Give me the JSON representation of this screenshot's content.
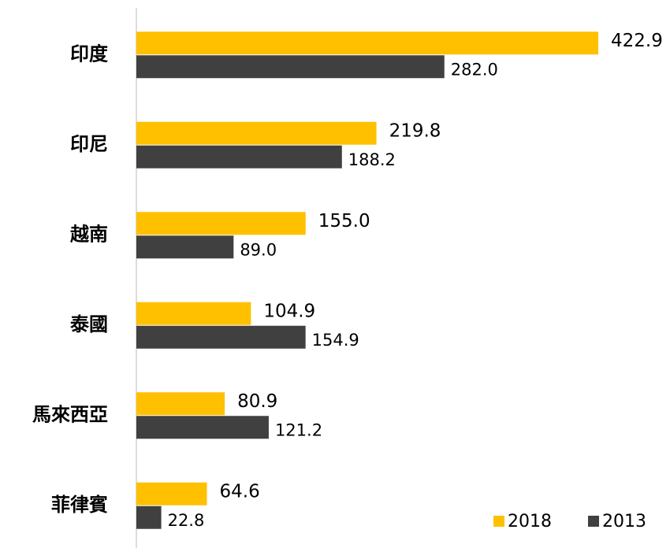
{
  "chart_data": {
    "type": "bar",
    "orientation": "horizontal",
    "categories": [
      "印度",
      "印尼",
      "越南",
      "泰國",
      "馬來西亞",
      "菲律賓"
    ],
    "series": [
      {
        "name": "2018",
        "color": "#FFC000",
        "values": [
          422.9,
          219.8,
          155.0,
          104.9,
          80.9,
          64.6
        ],
        "value_labels": [
          "422.9",
          "219.8",
          "155.0",
          "104.9",
          "80.9",
          "64.6"
        ]
      },
      {
        "name": "2013",
        "color": "#404040",
        "values": [
          282.0,
          188.2,
          89.0,
          154.9,
          121.2,
          22.8
        ],
        "value_labels": [
          "282.0",
          "188.2",
          "89.0",
          "154.9",
          "121.2",
          "22.8"
        ]
      }
    ],
    "legend": "bottom-right"
  }
}
